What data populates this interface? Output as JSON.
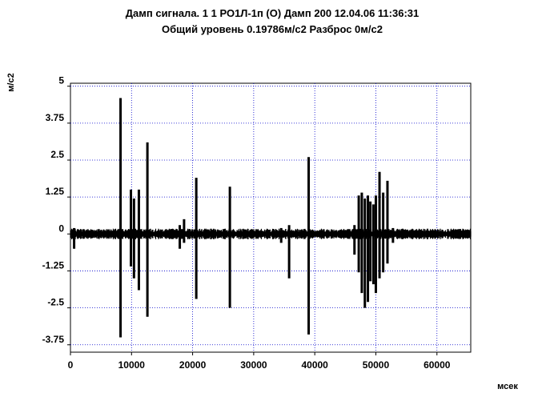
{
  "chart_data": {
    "type": "line",
    "title": "Дамп сигнала. 1 1 РО1Л-1п (О) Дамп 200 12.04.06 11:36:31",
    "subtitle": "Общий уровень 0.19786м/с2 Разброс 0м/с2",
    "xlabel": "мсек",
    "ylabel": "м/с2",
    "xlim": [
      0,
      65536
    ],
    "ylim": [
      -4.0,
      5.1
    ],
    "x_ticks": [
      0,
      10000,
      20000,
      30000,
      40000,
      50000,
      60000
    ],
    "x_tick_labels": [
      "0",
      "10000",
      "20000",
      "30000",
      "40000",
      "50000",
      "60000"
    ],
    "y_ticks": [
      5,
      3.75,
      2.5,
      1.25,
      0,
      -1.25,
      -2.5,
      -3.75
    ],
    "y_tick_labels": [
      "5",
      "3.75",
      "2.5",
      "1.25",
      "0",
      "-1.25",
      "-2.5",
      "-3.75"
    ],
    "grid": true,
    "noise_amplitude": 0.18,
    "series": [
      {
        "color": "#000000",
        "spikes": [
          {
            "x": 600,
            "min": -0.5,
            "max": 0.2
          },
          {
            "x": 8200,
            "min": -3.5,
            "max": 4.6
          },
          {
            "x": 9900,
            "min": -1.1,
            "max": 1.5
          },
          {
            "x": 10400,
            "min": -1.5,
            "max": 1.2
          },
          {
            "x": 11200,
            "min": -1.9,
            "max": 1.5
          },
          {
            "x": 12600,
            "min": -2.8,
            "max": 3.1
          },
          {
            "x": 17900,
            "min": -0.5,
            "max": 0.3
          },
          {
            "x": 18600,
            "min": -0.3,
            "max": 0.5
          },
          {
            "x": 20600,
            "min": -2.2,
            "max": 1.9
          },
          {
            "x": 26100,
            "min": -2.5,
            "max": 1.6
          },
          {
            "x": 34500,
            "min": -0.3,
            "max": 0.2
          },
          {
            "x": 35800,
            "min": -1.5,
            "max": 0.3
          },
          {
            "x": 39000,
            "min": -3.4,
            "max": 2.6
          },
          {
            "x": 46500,
            "min": -0.7,
            "max": 0.3
          },
          {
            "x": 47200,
            "min": -1.3,
            "max": 1.3
          },
          {
            "x": 47700,
            "min": -2.0,
            "max": 1.4
          },
          {
            "x": 48200,
            "min": -2.5,
            "max": 1.2
          },
          {
            "x": 48700,
            "min": -2.3,
            "max": 1.3
          },
          {
            "x": 49100,
            "min": -1.6,
            "max": 1.1
          },
          {
            "x": 49600,
            "min": -1.7,
            "max": 1.0
          },
          {
            "x": 50000,
            "min": -2.0,
            "max": 1.3
          },
          {
            "x": 50600,
            "min": -1.5,
            "max": 2.1
          },
          {
            "x": 51200,
            "min": -1.3,
            "max": 1.4
          },
          {
            "x": 51900,
            "min": -1.0,
            "max": 1.8
          },
          {
            "x": 52800,
            "min": -0.3,
            "max": 0.2
          }
        ]
      }
    ]
  }
}
